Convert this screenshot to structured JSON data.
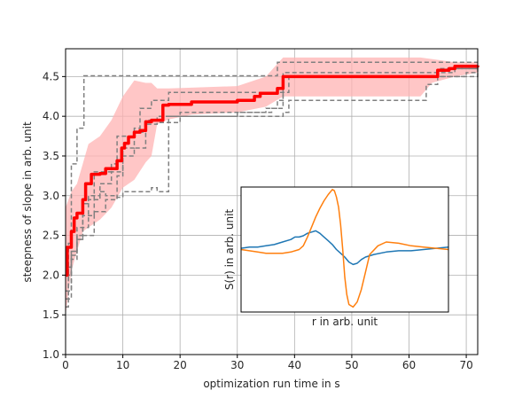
{
  "chart_data": [
    {
      "type": "line",
      "xlabel": "optimization run time in s",
      "ylabel": "steepness of slope in arb. unit",
      "xlim": [
        0,
        72
      ],
      "ylim": [
        1.0,
        4.85
      ],
      "xticks": [
        0,
        10,
        20,
        30,
        40,
        50,
        60,
        70
      ],
      "yticks": [
        1.0,
        1.5,
        2.0,
        2.5,
        3.0,
        3.5,
        4.0,
        4.5
      ],
      "xtick_labels": [
        "0",
        "10",
        "20",
        "30",
        "40",
        "50",
        "60",
        "70"
      ],
      "ytick_labels": [
        "1.0",
        "1.5",
        "2.0",
        "2.5",
        "3.0",
        "3.5",
        "4.0",
        "4.5"
      ],
      "grid": true,
      "colors": {
        "mean": "#ff0000",
        "band": "#ffb3b3",
        "runs": "#808080"
      },
      "mean": {
        "x": [
          0,
          0.3,
          1,
          1.5,
          2,
          3,
          3.5,
          4.5,
          6,
          7,
          9,
          9.8,
          10.3,
          11,
          12,
          13,
          14,
          15,
          17,
          18,
          22,
          30,
          33,
          34,
          37,
          38,
          42,
          62,
          65,
          67,
          68,
          72
        ],
        "y": [
          2.0,
          2.35,
          2.55,
          2.72,
          2.78,
          2.95,
          3.15,
          3.27,
          3.28,
          3.34,
          3.44,
          3.6,
          3.66,
          3.74,
          3.8,
          3.82,
          3.93,
          3.95,
          4.14,
          4.15,
          4.18,
          4.2,
          4.25,
          4.29,
          4.35,
          4.5,
          4.5,
          4.5,
          4.58,
          4.6,
          4.63,
          4.64
        ]
      },
      "band": {
        "x": [
          0,
          1,
          2,
          3,
          4,
          6,
          8,
          10,
          12,
          14,
          15,
          16,
          18,
          22,
          30,
          35,
          38,
          42,
          50,
          62,
          64,
          68,
          72
        ],
        "upper": [
          2.85,
          3.05,
          3.15,
          3.4,
          3.65,
          3.75,
          3.95,
          4.25,
          4.45,
          4.42,
          4.42,
          4.35,
          4.35,
          4.36,
          4.38,
          4.5,
          4.74,
          4.74,
          4.74,
          4.74,
          4.72,
          4.68,
          4.68
        ],
        "lower": [
          1.5,
          2.05,
          2.3,
          2.55,
          2.6,
          2.7,
          2.85,
          3.1,
          3.2,
          3.42,
          3.5,
          3.9,
          3.96,
          4.02,
          4.05,
          4.12,
          4.25,
          4.25,
          4.25,
          4.25,
          4.42,
          4.5,
          4.55
        ]
      },
      "runs": [
        {
          "x": [
            0,
            0.5,
            1,
            2,
            3,
            3.2,
            36,
            37,
            72
          ],
          "y": [
            1.7,
            2.4,
            3.4,
            3.85,
            3.85,
            4.51,
            4.51,
            4.68,
            4.68
          ]
        },
        {
          "x": [
            0,
            0.5,
            1,
            2,
            3,
            5,
            8,
            9,
            12,
            14,
            16,
            30,
            36,
            38,
            68,
            72
          ],
          "y": [
            1.6,
            2.1,
            2.3,
            2.5,
            2.75,
            3.3,
            3.4,
            3.75,
            3.8,
            3.95,
            4.0,
            4.05,
            4.1,
            4.55,
            4.6,
            4.6
          ]
        },
        {
          "x": [
            0,
            1,
            2,
            4,
            6,
            8,
            10,
            12,
            14,
            16,
            20,
            35,
            37,
            38,
            70,
            72
          ],
          "y": [
            1.8,
            2.2,
            2.6,
            3.0,
            3.15,
            3.3,
            3.5,
            3.6,
            3.9,
            3.92,
            4.05,
            4.1,
            4.2,
            4.5,
            4.55,
            4.6
          ]
        },
        {
          "x": [
            0,
            1,
            2,
            3,
            5,
            7,
            9,
            10,
            12,
            13,
            15,
            17,
            18,
            38,
            39,
            72
          ],
          "y": [
            2.0,
            2.3,
            2.45,
            2.5,
            2.8,
            2.95,
            3.25,
            3.6,
            3.85,
            4.1,
            4.2,
            4.2,
            4.3,
            4.3,
            4.5,
            4.55
          ]
        },
        {
          "x": [
            0,
            1,
            2,
            3,
            4,
            6,
            7,
            9,
            10,
            14,
            15,
            16,
            17,
            18,
            25,
            37,
            38,
            39,
            62,
            63,
            65,
            72
          ],
          "y": [
            1.7,
            2.25,
            2.45,
            2.9,
            2.95,
            3.05,
            3.0,
            2.98,
            3.05,
            3.05,
            3.1,
            3.05,
            3.05,
            4.0,
            4.0,
            4.0,
            4.05,
            4.2,
            4.2,
            4.4,
            4.6,
            4.64
          ]
        }
      ]
    },
    {
      "type": "line",
      "xlabel": "r in arb. unit",
      "ylabel": "S(r) in arb. unit",
      "xlim": [
        0,
        100
      ],
      "ylim": [
        0,
        100
      ],
      "ticks": false,
      "series": [
        {
          "color": "#1f77b4",
          "x": [
            0,
            4,
            8,
            12,
            16,
            20,
            24,
            26,
            28,
            30,
            32,
            34,
            36,
            38,
            40,
            42,
            44,
            46,
            48,
            50,
            52,
            54,
            56,
            58,
            60,
            64,
            70,
            76,
            82,
            88,
            94,
            100
          ],
          "y": [
            51,
            52,
            52,
            53,
            54,
            56,
            58,
            60,
            60,
            61,
            63,
            64,
            65,
            63,
            60,
            57,
            54,
            50,
            47,
            44,
            40,
            38,
            39,
            42,
            44,
            46,
            48,
            49,
            49,
            50,
            51,
            52
          ]
        },
        {
          "color": "#ff7f0e",
          "x": [
            0,
            4,
            8,
            12,
            16,
            20,
            24,
            28,
            30,
            32,
            34,
            36,
            38,
            40,
            42,
            44,
            45,
            46,
            47,
            48,
            49,
            50,
            51,
            52,
            54,
            56,
            58,
            60,
            62,
            66,
            70,
            76,
            82,
            88,
            94,
            100
          ],
          "y": [
            50,
            49,
            48,
            47,
            47,
            47,
            48,
            50,
            53,
            60,
            68,
            76,
            83,
            89,
            94,
            98,
            97,
            92,
            84,
            70,
            50,
            28,
            14,
            6,
            4,
            8,
            18,
            32,
            46,
            53,
            56,
            55,
            53,
            52,
            51,
            50
          ]
        }
      ]
    }
  ]
}
